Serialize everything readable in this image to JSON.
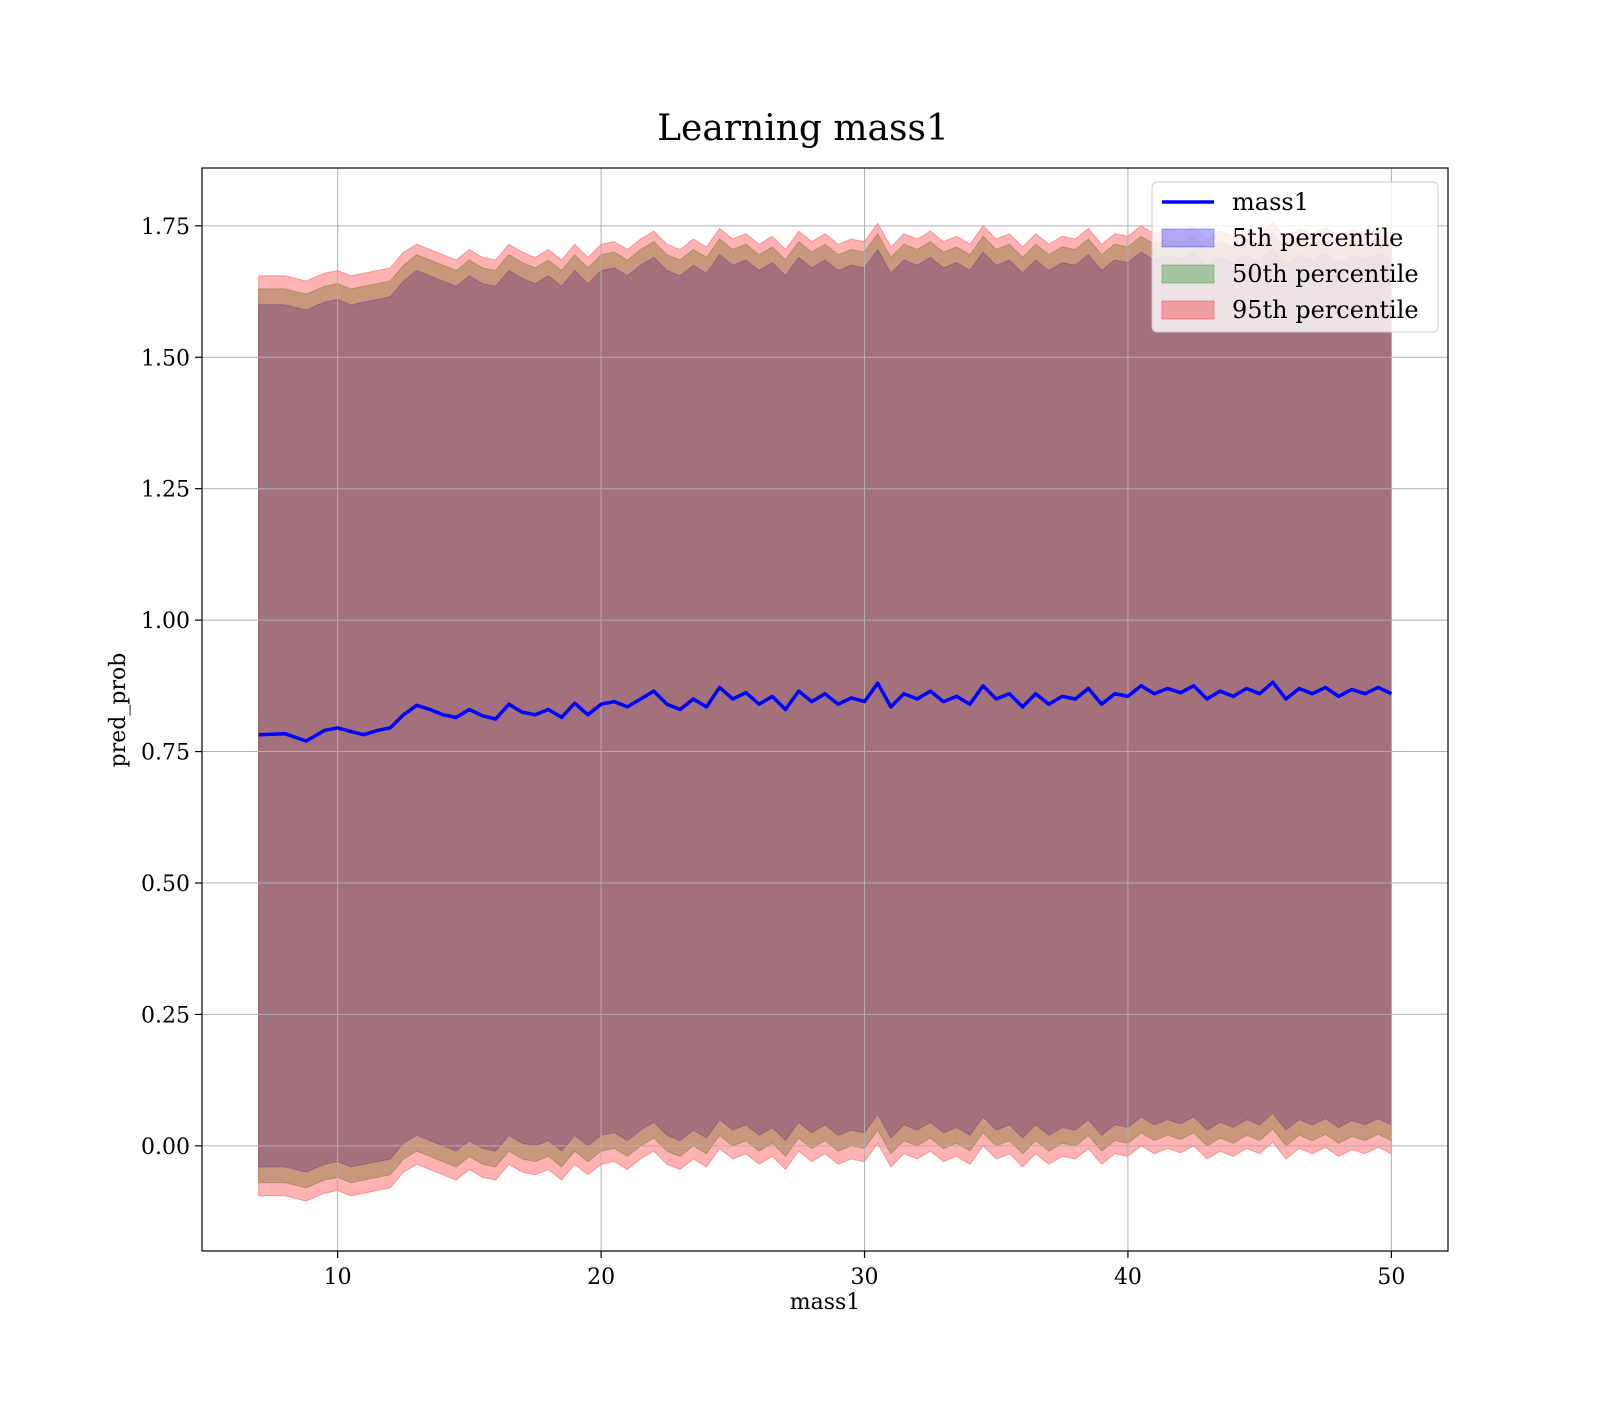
{
  "chart_data": {
    "type": "area",
    "title": "Learning mass1",
    "xlabel": "mass1",
    "ylabel": "pred_prob",
    "xlim": [
      4.85,
      52.15
    ],
    "ylim": [
      -0.2,
      1.86
    ],
    "grid": true,
    "legend_position": "top-right",
    "x_ticks": [
      10,
      20,
      30,
      40,
      50
    ],
    "x_tick_labels": [
      "10",
      "20",
      "30",
      "40",
      "50"
    ],
    "y_ticks": [
      0.0,
      0.25,
      0.5,
      0.75,
      1.0,
      1.25,
      1.5,
      1.75
    ],
    "y_tick_labels": [
      "0.00",
      "0.25",
      "0.50",
      "0.75",
      "1.00",
      "1.25",
      "1.50",
      "1.75"
    ],
    "x": [
      7,
      8,
      8.8,
      9.5,
      10,
      10.5,
      11,
      11.5,
      12,
      12.5,
      13,
      13.5,
      14,
      14.5,
      15,
      15.5,
      16,
      16.5,
      17,
      17.5,
      18,
      18.5,
      19,
      19.5,
      20,
      20.5,
      21,
      21.5,
      22,
      22.5,
      23,
      23.5,
      24,
      24.5,
      25,
      25.5,
      26,
      26.5,
      27,
      27.5,
      28,
      28.5,
      29,
      29.5,
      30,
      30.5,
      31,
      31.5,
      32,
      32.5,
      33,
      33.5,
      34,
      34.5,
      35,
      35.5,
      36,
      36.5,
      37,
      37.5,
      38,
      38.5,
      39,
      39.5,
      40,
      40.5,
      41,
      41.5,
      42,
      42.5,
      43,
      43.5,
      44,
      44.5,
      45,
      45.5,
      46,
      46.5,
      47,
      47.5,
      48,
      48.5,
      49,
      49.5,
      50
    ],
    "series": [
      {
        "name": "mass1",
        "kind": "line",
        "color": "#0000ff",
        "values": [
          0.782,
          0.784,
          0.77,
          0.79,
          0.795,
          0.788,
          0.782,
          0.79,
          0.795,
          0.82,
          0.838,
          0.83,
          0.82,
          0.815,
          0.83,
          0.818,
          0.812,
          0.84,
          0.825,
          0.82,
          0.83,
          0.815,
          0.842,
          0.82,
          0.84,
          0.845,
          0.835,
          0.85,
          0.865,
          0.84,
          0.83,
          0.85,
          0.835,
          0.872,
          0.85,
          0.862,
          0.84,
          0.855,
          0.83,
          0.865,
          0.845,
          0.86,
          0.84,
          0.852,
          0.845,
          0.88,
          0.835,
          0.86,
          0.85,
          0.865,
          0.845,
          0.855,
          0.84,
          0.875,
          0.85,
          0.86,
          0.835,
          0.86,
          0.84,
          0.855,
          0.85,
          0.87,
          0.84,
          0.86,
          0.855,
          0.875,
          0.86,
          0.87,
          0.862,
          0.875,
          0.85,
          0.865,
          0.855,
          0.87,
          0.86,
          0.882,
          0.85,
          0.87,
          0.86,
          0.872,
          0.855,
          0.868,
          0.86,
          0.872,
          0.86
        ]
      },
      {
        "name": "5th percentile",
        "kind": "band",
        "color": "#0000ff",
        "upper": [
          1.6,
          1.6,
          1.59,
          1.605,
          1.61,
          1.6,
          1.605,
          1.61,
          1.615,
          1.645,
          1.665,
          1.655,
          1.645,
          1.635,
          1.655,
          1.64,
          1.635,
          1.665,
          1.65,
          1.64,
          1.655,
          1.635,
          1.665,
          1.64,
          1.665,
          1.67,
          1.655,
          1.675,
          1.69,
          1.665,
          1.655,
          1.675,
          1.66,
          1.695,
          1.675,
          1.685,
          1.665,
          1.68,
          1.655,
          1.69,
          1.67,
          1.685,
          1.665,
          1.675,
          1.67,
          1.705,
          1.66,
          1.685,
          1.675,
          1.69,
          1.67,
          1.68,
          1.665,
          1.7,
          1.675,
          1.685,
          1.66,
          1.685,
          1.665,
          1.68,
          1.675,
          1.695,
          1.665,
          1.685,
          1.68,
          1.7,
          1.685,
          1.695,
          1.687,
          1.7,
          1.675,
          1.69,
          1.68,
          1.695,
          1.685,
          1.707,
          1.675,
          1.695,
          1.685,
          1.697,
          1.68,
          1.693,
          1.685,
          1.697,
          1.685
        ],
        "lower": [
          -0.04,
          -0.04,
          -0.05,
          -0.035,
          -0.03,
          -0.04,
          -0.035,
          -0.03,
          -0.025,
          0.005,
          0.02,
          0.01,
          0.0,
          -0.01,
          0.01,
          -0.005,
          -0.01,
          0.02,
          0.005,
          0.0,
          0.01,
          -0.01,
          0.02,
          0.0,
          0.02,
          0.025,
          0.01,
          0.03,
          0.045,
          0.02,
          0.01,
          0.03,
          0.015,
          0.05,
          0.03,
          0.04,
          0.02,
          0.035,
          0.01,
          0.045,
          0.025,
          0.04,
          0.02,
          0.03,
          0.025,
          0.06,
          0.015,
          0.04,
          0.03,
          0.045,
          0.025,
          0.035,
          0.02,
          0.055,
          0.03,
          0.04,
          0.015,
          0.04,
          0.02,
          0.035,
          0.03,
          0.05,
          0.02,
          0.04,
          0.035,
          0.055,
          0.04,
          0.05,
          0.042,
          0.055,
          0.03,
          0.045,
          0.035,
          0.05,
          0.04,
          0.062,
          0.03,
          0.05,
          0.04,
          0.052,
          0.035,
          0.048,
          0.04,
          0.052,
          0.04
        ]
      },
      {
        "name": "50th percentile",
        "kind": "band",
        "color": "#008000",
        "upper": [
          1.63,
          1.63,
          1.62,
          1.635,
          1.64,
          1.63,
          1.635,
          1.64,
          1.645,
          1.675,
          1.695,
          1.685,
          1.675,
          1.665,
          1.685,
          1.67,
          1.665,
          1.695,
          1.68,
          1.67,
          1.685,
          1.665,
          1.695,
          1.67,
          1.695,
          1.7,
          1.685,
          1.705,
          1.72,
          1.695,
          1.685,
          1.705,
          1.69,
          1.725,
          1.705,
          1.715,
          1.695,
          1.71,
          1.685,
          1.72,
          1.7,
          1.715,
          1.695,
          1.705,
          1.7,
          1.735,
          1.69,
          1.715,
          1.705,
          1.72,
          1.7,
          1.71,
          1.695,
          1.73,
          1.705,
          1.715,
          1.69,
          1.715,
          1.695,
          1.71,
          1.705,
          1.725,
          1.695,
          1.715,
          1.71,
          1.73,
          1.715,
          1.725,
          1.717,
          1.73,
          1.705,
          1.72,
          1.71,
          1.725,
          1.715,
          1.737,
          1.705,
          1.725,
          1.715,
          1.727,
          1.71,
          1.723,
          1.715,
          1.727,
          1.715
        ],
        "lower": [
          -0.07,
          -0.07,
          -0.08,
          -0.065,
          -0.06,
          -0.07,
          -0.065,
          -0.06,
          -0.055,
          -0.025,
          -0.01,
          -0.02,
          -0.03,
          -0.04,
          -0.02,
          -0.035,
          -0.04,
          -0.01,
          -0.025,
          -0.03,
          -0.02,
          -0.04,
          -0.01,
          -0.03,
          -0.01,
          -0.005,
          -0.02,
          0.0,
          0.015,
          -0.01,
          -0.02,
          0.0,
          -0.015,
          0.02,
          0.0,
          0.01,
          -0.01,
          0.005,
          -0.02,
          0.015,
          -0.005,
          0.01,
          -0.01,
          0.0,
          -0.005,
          0.03,
          -0.015,
          0.01,
          0.0,
          0.015,
          -0.005,
          0.005,
          -0.01,
          0.025,
          0.0,
          0.01,
          -0.015,
          0.01,
          -0.01,
          0.005,
          0.0,
          0.02,
          -0.01,
          0.01,
          0.005,
          0.025,
          0.01,
          0.02,
          0.012,
          0.025,
          0.0,
          0.015,
          0.005,
          0.02,
          0.01,
          0.032,
          0.0,
          0.02,
          0.01,
          0.022,
          0.005,
          0.018,
          0.01,
          0.022,
          0.01
        ]
      },
      {
        "name": "95th percentile",
        "kind": "band",
        "color": "#ff0000",
        "upper": [
          1.655,
          1.655,
          1.645,
          1.66,
          1.665,
          1.655,
          1.66,
          1.665,
          1.67,
          1.7,
          1.715,
          1.705,
          1.695,
          1.685,
          1.705,
          1.69,
          1.685,
          1.715,
          1.7,
          1.69,
          1.705,
          1.685,
          1.715,
          1.69,
          1.715,
          1.72,
          1.705,
          1.725,
          1.74,
          1.715,
          1.705,
          1.725,
          1.71,
          1.745,
          1.725,
          1.735,
          1.715,
          1.73,
          1.705,
          1.74,
          1.72,
          1.735,
          1.715,
          1.725,
          1.72,
          1.755,
          1.71,
          1.735,
          1.725,
          1.74,
          1.72,
          1.73,
          1.715,
          1.75,
          1.725,
          1.735,
          1.71,
          1.735,
          1.715,
          1.73,
          1.725,
          1.745,
          1.715,
          1.735,
          1.73,
          1.75,
          1.735,
          1.745,
          1.737,
          1.75,
          1.725,
          1.74,
          1.73,
          1.745,
          1.735,
          1.757,
          1.725,
          1.745,
          1.735,
          1.747,
          1.73,
          1.743,
          1.735,
          1.747,
          1.735
        ],
        "lower": [
          -0.095,
          -0.095,
          -0.105,
          -0.09,
          -0.085,
          -0.095,
          -0.09,
          -0.085,
          -0.08,
          -0.05,
          -0.035,
          -0.045,
          -0.055,
          -0.065,
          -0.045,
          -0.06,
          -0.065,
          -0.035,
          -0.05,
          -0.055,
          -0.045,
          -0.065,
          -0.035,
          -0.055,
          -0.035,
          -0.03,
          -0.045,
          -0.025,
          -0.01,
          -0.035,
          -0.045,
          -0.025,
          -0.04,
          -0.005,
          -0.025,
          -0.015,
          -0.035,
          -0.02,
          -0.045,
          -0.01,
          -0.03,
          -0.015,
          -0.035,
          -0.025,
          -0.03,
          0.005,
          -0.04,
          -0.015,
          -0.025,
          -0.01,
          -0.03,
          -0.02,
          -0.035,
          0.0,
          -0.025,
          -0.015,
          -0.04,
          -0.015,
          -0.035,
          -0.02,
          -0.025,
          -0.005,
          -0.035,
          -0.015,
          -0.02,
          0.0,
          -0.015,
          -0.005,
          -0.013,
          0.0,
          -0.025,
          -0.01,
          -0.02,
          -0.005,
          -0.015,
          0.007,
          -0.025,
          -0.005,
          -0.015,
          -0.003,
          -0.02,
          -0.007,
          -0.015,
          -0.003,
          -0.015
        ]
      }
    ]
  }
}
